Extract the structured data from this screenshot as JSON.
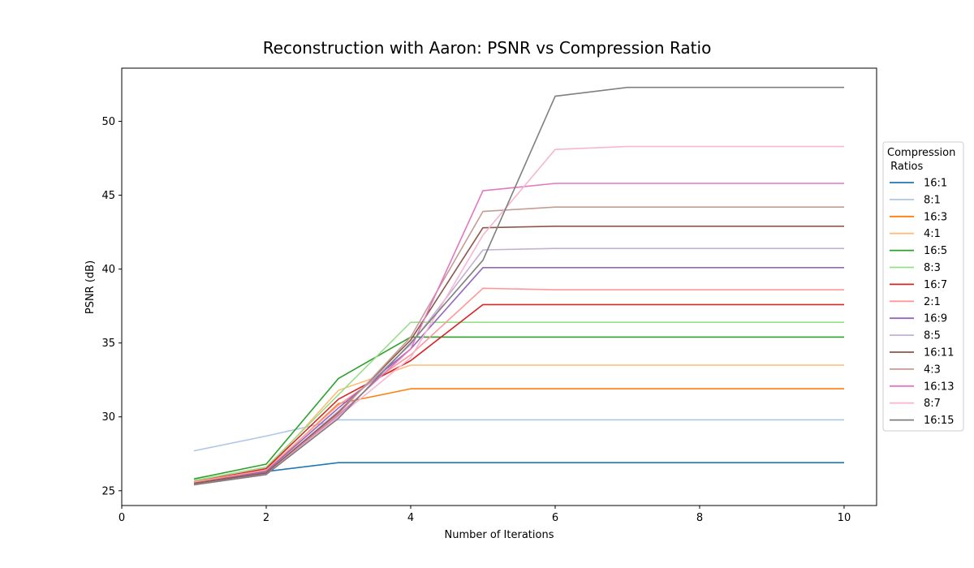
{
  "chart_data": {
    "type": "line",
    "title": "Reconstruction with Aaron: PSNR vs Compression Ratio",
    "xlabel": "Number of Iterations",
    "ylabel": "PSNR (dB)",
    "xlim": [
      0,
      10.45
    ],
    "ylim": [
      24,
      53.6
    ],
    "xticks": [
      0,
      2,
      4,
      6,
      8,
      10
    ],
    "yticks": [
      25,
      30,
      35,
      40,
      45,
      50
    ],
    "grid": false,
    "legend": {
      "title": "Compression\n Ratios",
      "placement": "right, outside plot area"
    },
    "x": [
      1,
      2,
      3,
      4,
      5,
      6,
      7,
      8,
      9,
      10
    ],
    "series": [
      {
        "name": "16:1",
        "color": "#1f77b4",
        "values": [
          25.6,
          26.3,
          26.9,
          26.9,
          26.9,
          26.9,
          26.9,
          26.9,
          26.9,
          26.9
        ]
      },
      {
        "name": "8:1",
        "color": "#aec7e8",
        "values": [
          27.7,
          28.7,
          29.8,
          29.8,
          29.8,
          29.8,
          29.8,
          29.8,
          29.8,
          29.8
        ]
      },
      {
        "name": "16:3",
        "color": "#ff7f0e",
        "values": [
          25.6,
          26.3,
          30.9,
          31.9,
          31.9,
          31.9,
          31.9,
          31.9,
          31.9,
          31.9
        ]
      },
      {
        "name": "4:1",
        "color": "#ffbb78",
        "values": [
          25.7,
          26.4,
          31.8,
          33.5,
          33.5,
          33.5,
          33.5,
          33.5,
          33.5,
          33.5
        ]
      },
      {
        "name": "16:5",
        "color": "#2ca02c",
        "values": [
          25.8,
          26.8,
          32.6,
          35.4,
          35.4,
          35.4,
          35.4,
          35.4,
          35.4,
          35.4
        ]
      },
      {
        "name": "8:3",
        "color": "#98df8a",
        "values": [
          25.7,
          26.6,
          31.5,
          36.4,
          36.4,
          36.4,
          36.4,
          36.4,
          36.4,
          36.4
        ]
      },
      {
        "name": "16:7",
        "color": "#d62728",
        "values": [
          25.6,
          26.5,
          31.2,
          33.8,
          37.6,
          37.6,
          37.6,
          37.6,
          37.6,
          37.6
        ]
      },
      {
        "name": "2:1",
        "color": "#ff9896",
        "values": [
          25.6,
          26.4,
          30.8,
          34.2,
          38.7,
          38.6,
          38.6,
          38.6,
          38.6,
          38.6
        ]
      },
      {
        "name": "16:9",
        "color": "#9467bd",
        "values": [
          25.5,
          26.3,
          30.6,
          34.6,
          40.1,
          40.1,
          40.1,
          40.1,
          40.1,
          40.1
        ]
      },
      {
        "name": "8:5",
        "color": "#c5b0d5",
        "values": [
          25.5,
          26.2,
          30.4,
          34.9,
          41.3,
          41.4,
          41.4,
          41.4,
          41.4,
          41.4
        ]
      },
      {
        "name": "16:11",
        "color": "#8c564b",
        "values": [
          25.5,
          26.2,
          30.3,
          35.2,
          42.8,
          42.9,
          42.9,
          42.9,
          42.9,
          42.9
        ]
      },
      {
        "name": "4:3",
        "color": "#c49c94",
        "values": [
          25.4,
          26.1,
          30.2,
          35.4,
          43.9,
          44.2,
          44.2,
          44.2,
          44.2,
          44.2
        ]
      },
      {
        "name": "16:13",
        "color": "#e377c2",
        "values": [
          25.4,
          26.1,
          30.1,
          34.6,
          45.3,
          45.8,
          45.8,
          45.8,
          45.8,
          45.8
        ]
      },
      {
        "name": "8:7",
        "color": "#f7b6d2",
        "values": [
          25.4,
          26.1,
          30.0,
          34.0,
          42.3,
          48.1,
          48.3,
          48.3,
          48.3,
          48.3
        ]
      },
      {
        "name": "16:15",
        "color": "#7f7f7f",
        "values": [
          25.4,
          26.1,
          29.9,
          35.0,
          40.6,
          51.7,
          52.3,
          52.3,
          52.3,
          52.3
        ]
      }
    ]
  }
}
